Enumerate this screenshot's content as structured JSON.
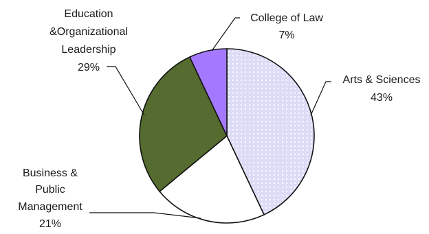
{
  "chart_data": {
    "type": "pie",
    "title": "",
    "slices": [
      {
        "label_lines": [
          "Arts & Sciences"
        ],
        "percent_label": "43%",
        "value": 43,
        "color": "#dcdcf7",
        "pattern": "dotted"
      },
      {
        "label_lines": [
          "Business &",
          "Public",
          "Management"
        ],
        "percent_label": "21%",
        "value": 21,
        "color": "#ffffff",
        "pattern": "none"
      },
      {
        "label_lines": [
          "Education",
          "&Organizational",
          "Leadership"
        ],
        "percent_label": "29%",
        "value": 29,
        "color": "#556b2f",
        "pattern": "none"
      },
      {
        "label_lines": [
          "College of Law"
        ],
        "percent_label": "7%",
        "value": 7,
        "color": "#a479ff",
        "pattern": "none"
      }
    ],
    "start_angle_deg": 0,
    "direction": "clockwise",
    "legend": "none",
    "labels": "outside with leader lines"
  }
}
